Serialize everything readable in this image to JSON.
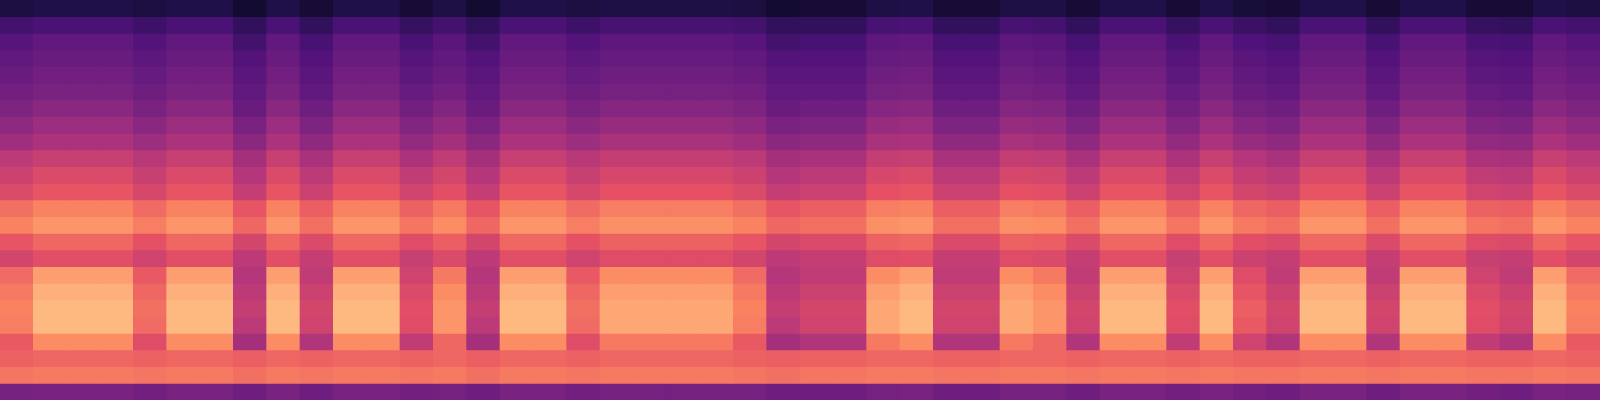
{
  "chart_data": {
    "type": "heatmap",
    "zlim": [
      0,
      100
    ],
    "tick_labels": false,
    "grid": false,
    "cells": [
      [
        12,
        14,
        14,
        14,
        12,
        14,
        14,
        9,
        14,
        10,
        14,
        14,
        10,
        13,
        9,
        14,
        14,
        12,
        13,
        13,
        13,
        13,
        12,
        9,
        10,
        10,
        13,
        14,
        10,
        10,
        13,
        13,
        10,
        14,
        14,
        10,
        14,
        11,
        10,
        14,
        14,
        10,
        14,
        14,
        10,
        10,
        14,
        12
      ],
      [
        22,
        24,
        24,
        24,
        21,
        24,
        24,
        18,
        24,
        18,
        24,
        24,
        19,
        22,
        18,
        24,
        24,
        21,
        23,
        23,
        23,
        23,
        22,
        18,
        18,
        18,
        23,
        24,
        18,
        18,
        23,
        22,
        18,
        24,
        24,
        19,
        24,
        20,
        18,
        24,
        24,
        18,
        24,
        24,
        19,
        18,
        24,
        22
      ],
      [
        27,
        30,
        30,
        30,
        26,
        30,
        30,
        22,
        30,
        23,
        30,
        30,
        24,
        28,
        22,
        30,
        30,
        26,
        29,
        29,
        29,
        29,
        27,
        22,
        23,
        23,
        29,
        30,
        23,
        23,
        29,
        28,
        23,
        30,
        30,
        24,
        30,
        25,
        23,
        30,
        30,
        23,
        30,
        30,
        24,
        23,
        30,
        27
      ],
      [
        30,
        32,
        32,
        32,
        29,
        32,
        32,
        26,
        32,
        26,
        32,
        32,
        27,
        30,
        26,
        32,
        32,
        29,
        31,
        31,
        31,
        31,
        30,
        26,
        26,
        26,
        31,
        32,
        26,
        26,
        31,
        30,
        26,
        32,
        32,
        27,
        32,
        28,
        26,
        32,
        32,
        26,
        32,
        32,
        27,
        26,
        32,
        30
      ],
      [
        32,
        34,
        34,
        34,
        31,
        34,
        34,
        28,
        34,
        28,
        34,
        34,
        29,
        32,
        28,
        34,
        34,
        31,
        33,
        33,
        33,
        33,
        32,
        28,
        28,
        28,
        33,
        34,
        28,
        28,
        33,
        32,
        28,
        34,
        34,
        29,
        34,
        30,
        28,
        34,
        34,
        28,
        34,
        34,
        29,
        28,
        34,
        32
      ],
      [
        34,
        36,
        36,
        36,
        33,
        36,
        36,
        30,
        36,
        30,
        36,
        36,
        31,
        34,
        30,
        36,
        36,
        33,
        35,
        35,
        35,
        35,
        34,
        30,
        30,
        30,
        35,
        36,
        30,
        30,
        35,
        34,
        30,
        36,
        36,
        31,
        36,
        32,
        30,
        36,
        36,
        30,
        36,
        36,
        31,
        30,
        36,
        34
      ],
      [
        37,
        40,
        40,
        40,
        36,
        40,
        40,
        32,
        40,
        33,
        40,
        40,
        34,
        38,
        32,
        40,
        40,
        36,
        39,
        39,
        39,
        39,
        37,
        32,
        33,
        33,
        39,
        40,
        33,
        33,
        39,
        38,
        33,
        40,
        40,
        34,
        40,
        35,
        33,
        40,
        40,
        33,
        40,
        40,
        34,
        33,
        40,
        37
      ],
      [
        41,
        44,
        44,
        44,
        40,
        44,
        44,
        36,
        44,
        37,
        44,
        44,
        38,
        42,
        36,
        44,
        44,
        40,
        43,
        43,
        43,
        43,
        41,
        36,
        37,
        37,
        43,
        44,
        37,
        37,
        43,
        42,
        37,
        44,
        44,
        38,
        44,
        39,
        37,
        44,
        44,
        37,
        44,
        44,
        38,
        37,
        44,
        41
      ],
      [
        45,
        48,
        48,
        48,
        44,
        48,
        48,
        40,
        48,
        41,
        48,
        48,
        42,
        46,
        40,
        48,
        48,
        44,
        47,
        47,
        47,
        47,
        45,
        40,
        41,
        41,
        47,
        48,
        41,
        41,
        47,
        46,
        41,
        48,
        48,
        42,
        48,
        43,
        41,
        48,
        48,
        41,
        48,
        48,
        42,
        41,
        48,
        45
      ],
      [
        52,
        55,
        55,
        55,
        51,
        55,
        55,
        46,
        55,
        47,
        55,
        55,
        48,
        53,
        46,
        55,
        55,
        51,
        54,
        54,
        54,
        54,
        52,
        46,
        47,
        47,
        54,
        55,
        47,
        47,
        54,
        53,
        47,
        55,
        55,
        48,
        55,
        50,
        47,
        55,
        55,
        47,
        55,
        55,
        48,
        47,
        55,
        52
      ],
      [
        56,
        60,
        60,
        60,
        55,
        60,
        60,
        50,
        60,
        52,
        60,
        60,
        53,
        58,
        50,
        60,
        60,
        55,
        59,
        59,
        59,
        59,
        56,
        50,
        52,
        52,
        59,
        60,
        52,
        52,
        59,
        58,
        52,
        60,
        60,
        53,
        60,
        54,
        52,
        60,
        60,
        52,
        60,
        60,
        53,
        52,
        60,
        56
      ],
      [
        60,
        64,
        64,
        64,
        59,
        64,
        64,
        54,
        64,
        56,
        64,
        64,
        57,
        62,
        54,
        64,
        64,
        59,
        63,
        63,
        63,
        63,
        60,
        54,
        56,
        56,
        63,
        64,
        56,
        56,
        63,
        62,
        56,
        64,
        64,
        57,
        64,
        58,
        56,
        64,
        64,
        56,
        64,
        64,
        57,
        56,
        64,
        60
      ],
      [
        70,
        74,
        74,
        74,
        69,
        74,
        74,
        64,
        74,
        66,
        74,
        74,
        67,
        72,
        64,
        74,
        74,
        69,
        73,
        73,
        73,
        73,
        70,
        64,
        66,
        66,
        73,
        74,
        66,
        66,
        73,
        72,
        66,
        74,
        74,
        67,
        74,
        68,
        66,
        74,
        74,
        66,
        74,
        74,
        67,
        66,
        74,
        70
      ],
      [
        74,
        78,
        78,
        78,
        73,
        78,
        78,
        68,
        78,
        70,
        78,
        78,
        71,
        76,
        68,
        78,
        78,
        73,
        77,
        77,
        77,
        77,
        74,
        68,
        70,
        70,
        77,
        78,
        70,
        70,
        77,
        76,
        70,
        78,
        78,
        71,
        78,
        72,
        70,
        78,
        78,
        70,
        78,
        78,
        71,
        70,
        78,
        74
      ],
      [
        64,
        68,
        68,
        68,
        63,
        68,
        68,
        58,
        68,
        60,
        68,
        68,
        61,
        66,
        58,
        68,
        68,
        63,
        67,
        67,
        67,
        67,
        64,
        58,
        60,
        60,
        67,
        68,
        60,
        60,
        67,
        66,
        60,
        68,
        68,
        61,
        68,
        62,
        60,
        68,
        68,
        60,
        68,
        68,
        61,
        60,
        68,
        64
      ],
      [
        58,
        62,
        62,
        62,
        57,
        62,
        62,
        52,
        62,
        54,
        62,
        62,
        55,
        60,
        52,
        62,
        62,
        57,
        61,
        61,
        61,
        61,
        58,
        52,
        54,
        54,
        61,
        62,
        54,
        54,
        61,
        60,
        54,
        62,
        62,
        55,
        62,
        56,
        54,
        62,
        62,
        54,
        62,
        62,
        55,
        54,
        62,
        58
      ],
      [
        69,
        80,
        80,
        80,
        65,
        80,
        80,
        50,
        80,
        53,
        80,
        80,
        57,
        72,
        50,
        80,
        80,
        65,
        76,
        76,
        76,
        76,
        69,
        50,
        53,
        53,
        76,
        80,
        53,
        53,
        76,
        72,
        53,
        80,
        80,
        57,
        80,
        61,
        53,
        80,
        80,
        53,
        80,
        80,
        57,
        53,
        80,
        69
      ],
      [
        72,
        84,
        84,
        84,
        68,
        84,
        84,
        52,
        84,
        56,
        84,
        84,
        60,
        76,
        52,
        84,
        84,
        68,
        80,
        80,
        80,
        80,
        72,
        52,
        56,
        56,
        80,
        84,
        56,
        56,
        80,
        76,
        56,
        84,
        84,
        60,
        84,
        64,
        56,
        84,
        84,
        56,
        84,
        84,
        60,
        56,
        84,
        72
      ],
      [
        74,
        86,
        86,
        86,
        70,
        86,
        86,
        54,
        86,
        58,
        86,
        86,
        62,
        78,
        54,
        86,
        86,
        70,
        82,
        82,
        82,
        82,
        74,
        54,
        58,
        58,
        82,
        86,
        58,
        58,
        82,
        78,
        58,
        86,
        86,
        62,
        86,
        66,
        58,
        86,
        86,
        58,
        86,
        86,
        62,
        58,
        86,
        74
      ],
      [
        73,
        86,
        86,
        86,
        69,
        86,
        86,
        52,
        86,
        57,
        86,
        86,
        61,
        78,
        52,
        86,
        86,
        69,
        82,
        82,
        82,
        82,
        73,
        52,
        57,
        57,
        82,
        86,
        57,
        57,
        82,
        78,
        57,
        86,
        86,
        61,
        86,
        65,
        57,
        86,
        86,
        57,
        86,
        86,
        61,
        57,
        86,
        73
      ],
      [
        65,
        76,
        76,
        76,
        61,
        76,
        76,
        46,
        76,
        49,
        76,
        76,
        53,
        68,
        46,
        76,
        76,
        61,
        72,
        72,
        72,
        72,
        65,
        46,
        49,
        49,
        72,
        76,
        49,
        49,
        72,
        68,
        49,
        76,
        76,
        53,
        76,
        57,
        49,
        76,
        76,
        49,
        76,
        76,
        53,
        49,
        76,
        65
      ],
      [
        67,
        68,
        68,
        68,
        67,
        68,
        68,
        66,
        68,
        67,
        68,
        68,
        67,
        68,
        66,
        68,
        68,
        67,
        68,
        68,
        68,
        68,
        67,
        66,
        67,
        67,
        68,
        68,
        67,
        67,
        68,
        68,
        67,
        68,
        68,
        67,
        68,
        67,
        67,
        68,
        68,
        67,
        68,
        68,
        67,
        67,
        68,
        67
      ],
      [
        71,
        72,
        72,
        72,
        71,
        72,
        72,
        70,
        72,
        71,
        72,
        72,
        71,
        72,
        70,
        72,
        72,
        71,
        72,
        72,
        72,
        72,
        71,
        70,
        71,
        71,
        72,
        72,
        71,
        71,
        72,
        72,
        71,
        72,
        72,
        71,
        72,
        71,
        71,
        72,
        72,
        71,
        72,
        72,
        71,
        71,
        72,
        71
      ],
      [
        35,
        36,
        36,
        36,
        34,
        36,
        36,
        33,
        36,
        33,
        36,
        36,
        34,
        35,
        33,
        36,
        36,
        34,
        35,
        35,
        35,
        35,
        35,
        33,
        33,
        33,
        35,
        36,
        33,
        33,
        35,
        35,
        33,
        36,
        36,
        34,
        36,
        34,
        33,
        36,
        36,
        33,
        36,
        36,
        34,
        33,
        36,
        35
      ]
    ]
  }
}
